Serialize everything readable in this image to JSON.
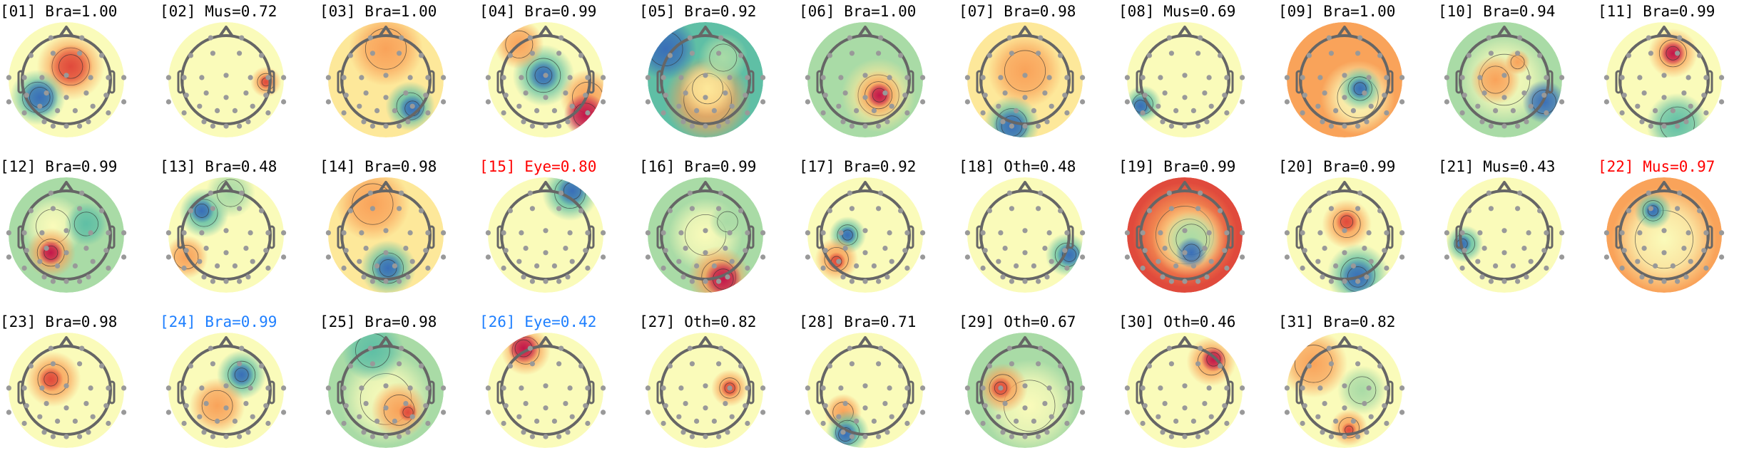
{
  "colors": {
    "default_title": "#000000",
    "red_title": "#ff0000",
    "blue_title": "#1e7fff"
  },
  "components": [
    {
      "title": "[01] Bra=1.00",
      "title_color": "default_title"
    },
    {
      "title": "[02] Mus=0.72",
      "title_color": "default_title"
    },
    {
      "title": "[03] Bra=1.00",
      "title_color": "default_title"
    },
    {
      "title": "[04] Bra=0.99",
      "title_color": "default_title"
    },
    {
      "title": "[05] Bra=0.92",
      "title_color": "default_title"
    },
    {
      "title": "[06] Bra=1.00",
      "title_color": "default_title"
    },
    {
      "title": "[07] Bra=0.98",
      "title_color": "default_title"
    },
    {
      "title": "[08] Mus=0.69",
      "title_color": "default_title"
    },
    {
      "title": "[09] Bra=1.00",
      "title_color": "default_title"
    },
    {
      "title": "[10] Bra=0.94",
      "title_color": "default_title"
    },
    {
      "title": "[11] Bra=0.99",
      "title_color": "default_title"
    },
    {
      "title": "[12] Bra=0.99",
      "title_color": "default_title"
    },
    {
      "title": "[13] Bra=0.48",
      "title_color": "default_title"
    },
    {
      "title": "[14] Bra=0.98",
      "title_color": "default_title"
    },
    {
      "title": "[15] Eye=0.80",
      "title_color": "red_title"
    },
    {
      "title": "[16] Bra=0.99",
      "title_color": "default_title"
    },
    {
      "title": "[17] Bra=0.92",
      "title_color": "default_title"
    },
    {
      "title": "[18] Oth=0.48",
      "title_color": "default_title"
    },
    {
      "title": "[19] Bra=0.99",
      "title_color": "default_title"
    },
    {
      "title": "[20] Bra=0.99",
      "title_color": "default_title"
    },
    {
      "title": "[21] Mus=0.43",
      "title_color": "default_title"
    },
    {
      "title": "[22] Mus=0.97",
      "title_color": "red_title"
    },
    {
      "title": "[23] Bra=0.98",
      "title_color": "default_title"
    },
    {
      "title": "[24] Bra=0.99",
      "title_color": "blue_title"
    },
    {
      "title": "[25] Bra=0.98",
      "title_color": "default_title"
    },
    {
      "title": "[26] Eye=0.42",
      "title_color": "blue_title"
    },
    {
      "title": "[27] Oth=0.82",
      "title_color": "default_title"
    },
    {
      "title": "[28] Bra=0.71",
      "title_color": "default_title"
    },
    {
      "title": "[29] Oth=0.67",
      "title_color": "default_title"
    },
    {
      "title": "[30] Oth=0.46",
      "title_color": "default_title"
    },
    {
      "title": "[31] Bra=0.82",
      "title_color": "default_title"
    }
  ]
}
